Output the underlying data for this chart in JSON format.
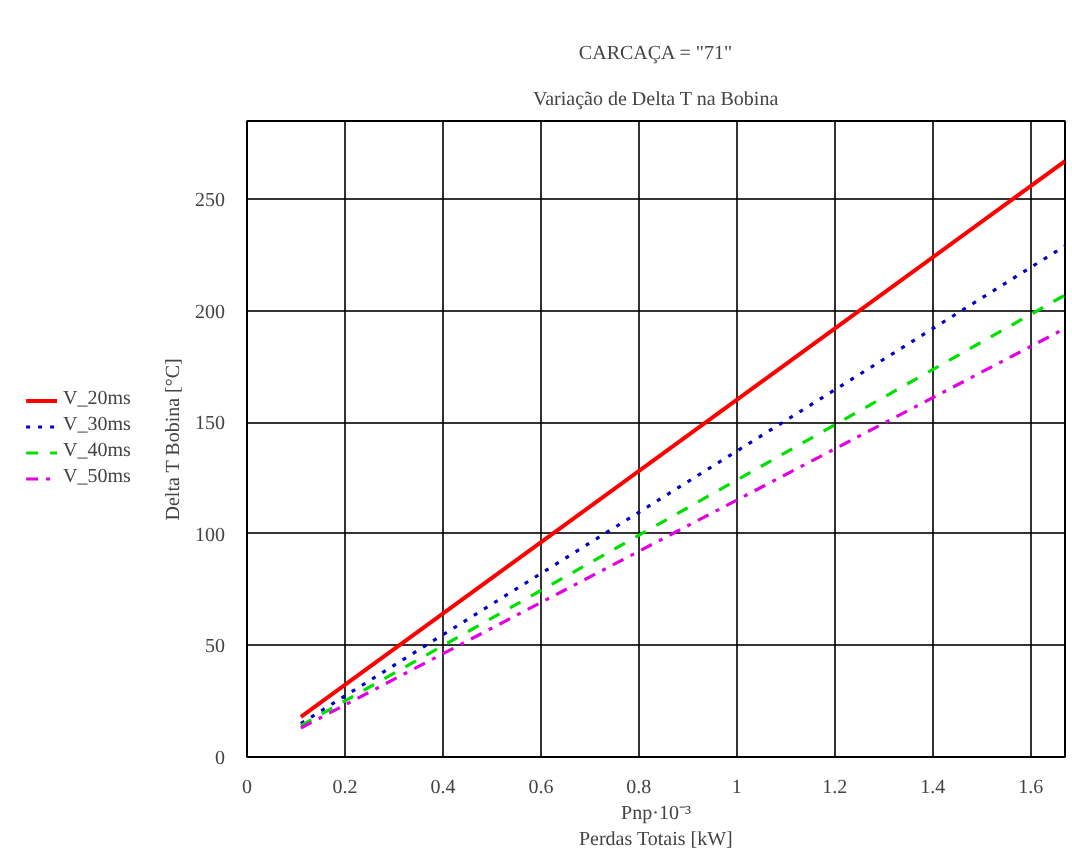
{
  "chart_data": {
    "type": "line",
    "title": "CARCAÇA = \"71\"",
    "subtitle": "Variação de Delta T na Bobina",
    "xlabel": "Pnp·10⁻³\nPerdas Totais [kW]",
    "ylabel": "Delta T Bobina [°C]",
    "x": [
      0.11,
      1.67
    ],
    "series": [
      {
        "name": "V_20ms",
        "color": "#ff0000",
        "values": [
          18,
          267
        ],
        "line_style": "solid"
      },
      {
        "name": "V_30ms",
        "color": "#0000c0",
        "values": [
          15,
          229
        ],
        "line_style": "dotted"
      },
      {
        "name": "V_40ms",
        "color": "#00e000",
        "values": [
          14,
          207
        ],
        "line_style": "dashed"
      },
      {
        "name": "V_50ms",
        "color": "#e000e0",
        "values": [
          13,
          192
        ],
        "line_style": "dashdot"
      }
    ],
    "xlim": [
      0,
      1.67
    ],
    "xticks": [
      0,
      0.2,
      0.4,
      0.6,
      0.8,
      1,
      1.2,
      1.4,
      1.6
    ],
    "ylim": [
      0,
      285
    ],
    "yticks": [
      0,
      50,
      100,
      150,
      200,
      250
    ],
    "grid": true,
    "legend": "left",
    "marker": "none"
  }
}
